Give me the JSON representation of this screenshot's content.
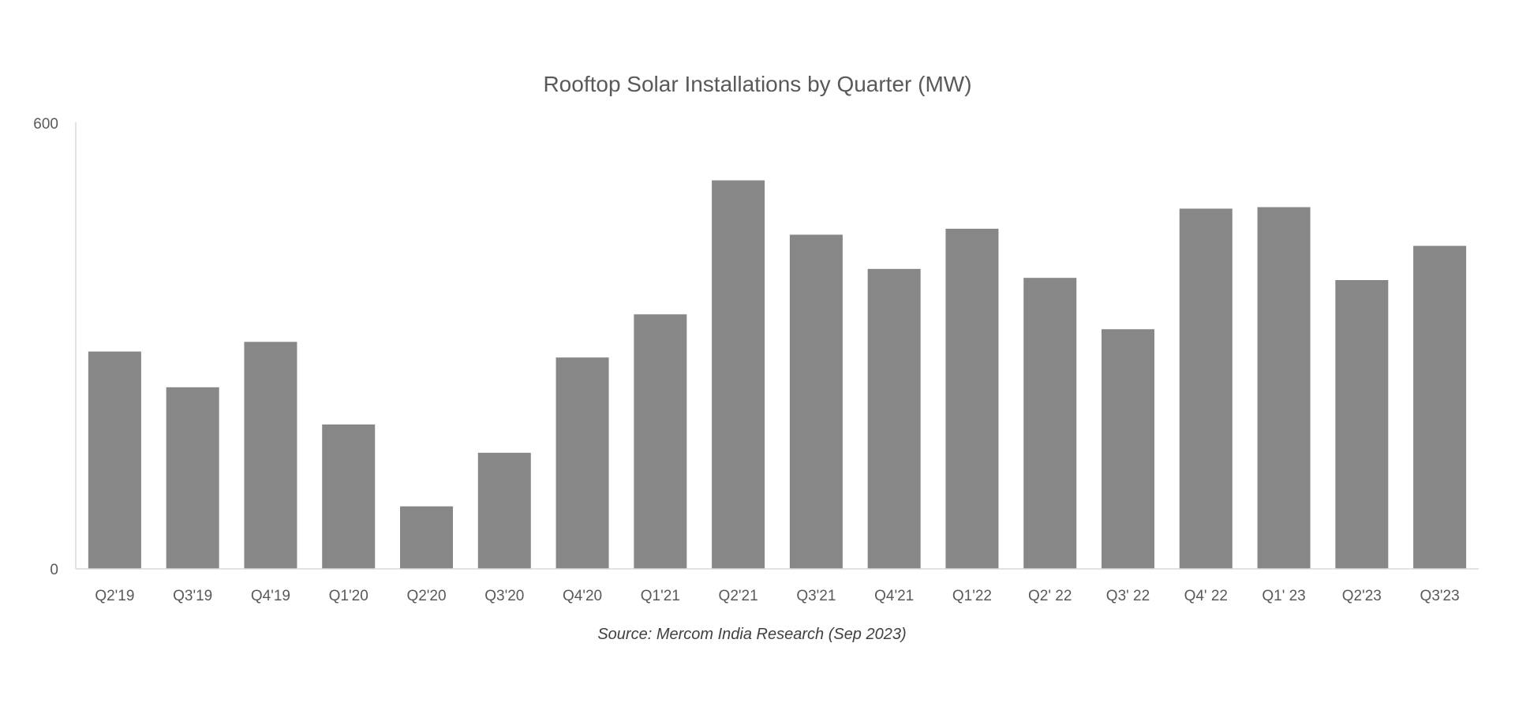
{
  "chart_data": {
    "type": "bar",
    "title": "Rooftop Solar Installations by Quarter (MW)",
    "source": "Source: Mercom India Research (Sep 2023)",
    "xlabel": "",
    "ylabel": "",
    "ylim": [
      0,
      600
    ],
    "yticks": [
      "0",
      "600"
    ],
    "grid": false,
    "bar_color": "#878787",
    "categories": [
      "Q2'19",
      "Q3'19",
      "Q4'19",
      "Q1'20",
      "Q2'20",
      "Q3'20",
      "Q4'20",
      "Q1'21",
      "Q2'21",
      "Q3'21",
      "Q4'21",
      "Q1'22",
      "Q2' 22",
      "Q3' 22",
      "Q4' 22",
      "Q1' 23",
      "Q2'23",
      "Q3'23"
    ],
    "values": [
      292,
      244,
      305,
      194,
      84,
      156,
      284,
      342,
      522,
      449,
      403,
      457,
      391,
      322,
      484,
      486,
      388,
      434
    ]
  }
}
